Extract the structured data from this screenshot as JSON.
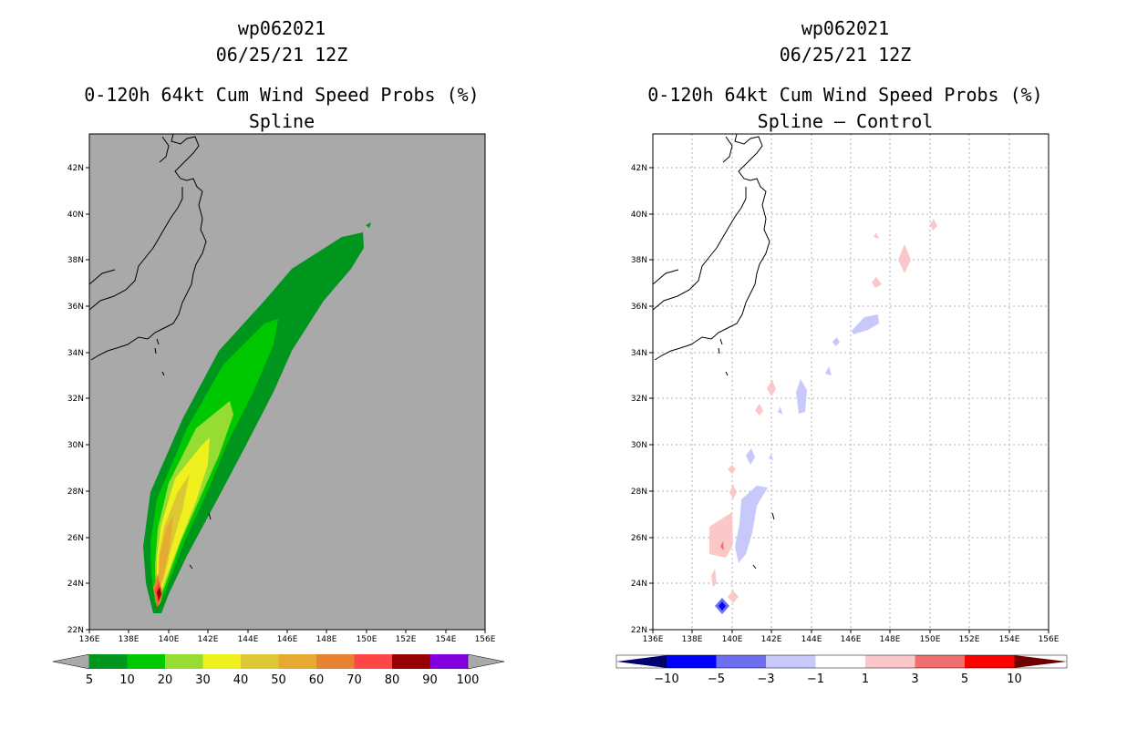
{
  "left": {
    "title1": "wp062021",
    "title2": "06/25/21 12Z",
    "title3": "0-120h 64kt Cum Wind Speed Probs (%)",
    "title4": "Spline",
    "colorbar_labels": [
      "5",
      "10",
      "20",
      "30",
      "40",
      "50",
      "60",
      "70",
      "80",
      "90",
      "100"
    ],
    "colors": [
      "#00961e",
      "#00c800",
      "#96dc32",
      "#f0f01e",
      "#dcc832",
      "#e6aa32",
      "#e68232",
      "#ff4646",
      "#960000",
      "#8200dc"
    ]
  },
  "right": {
    "title1": "wp062021",
    "title2": "06/25/21 12Z",
    "title3": "0-120h 64kt Cum Wind Speed Probs (%)",
    "title4": "Spline – Control",
    "colorbar_labels": [
      "−10",
      "−5",
      "−3",
      "−1",
      "1",
      "3",
      "5",
      "10"
    ],
    "colors": [
      "#00006e",
      "#0000ff",
      "#6e6ef0",
      "#c8c8fa",
      "#ffffff",
      "#fac8c8",
      "#f06e6e",
      "#ff0000",
      "#6e0000"
    ]
  },
  "axes": {
    "lon_labels": [
      "136E",
      "138E",
      "140E",
      "142E",
      "144E",
      "146E",
      "148E",
      "150E",
      "152E",
      "154E",
      "156E"
    ],
    "lat_labels": [
      "22N",
      "24N",
      "26N",
      "28N",
      "30N",
      "32N",
      "34N",
      "36N",
      "38N",
      "40N",
      "42N"
    ]
  }
}
